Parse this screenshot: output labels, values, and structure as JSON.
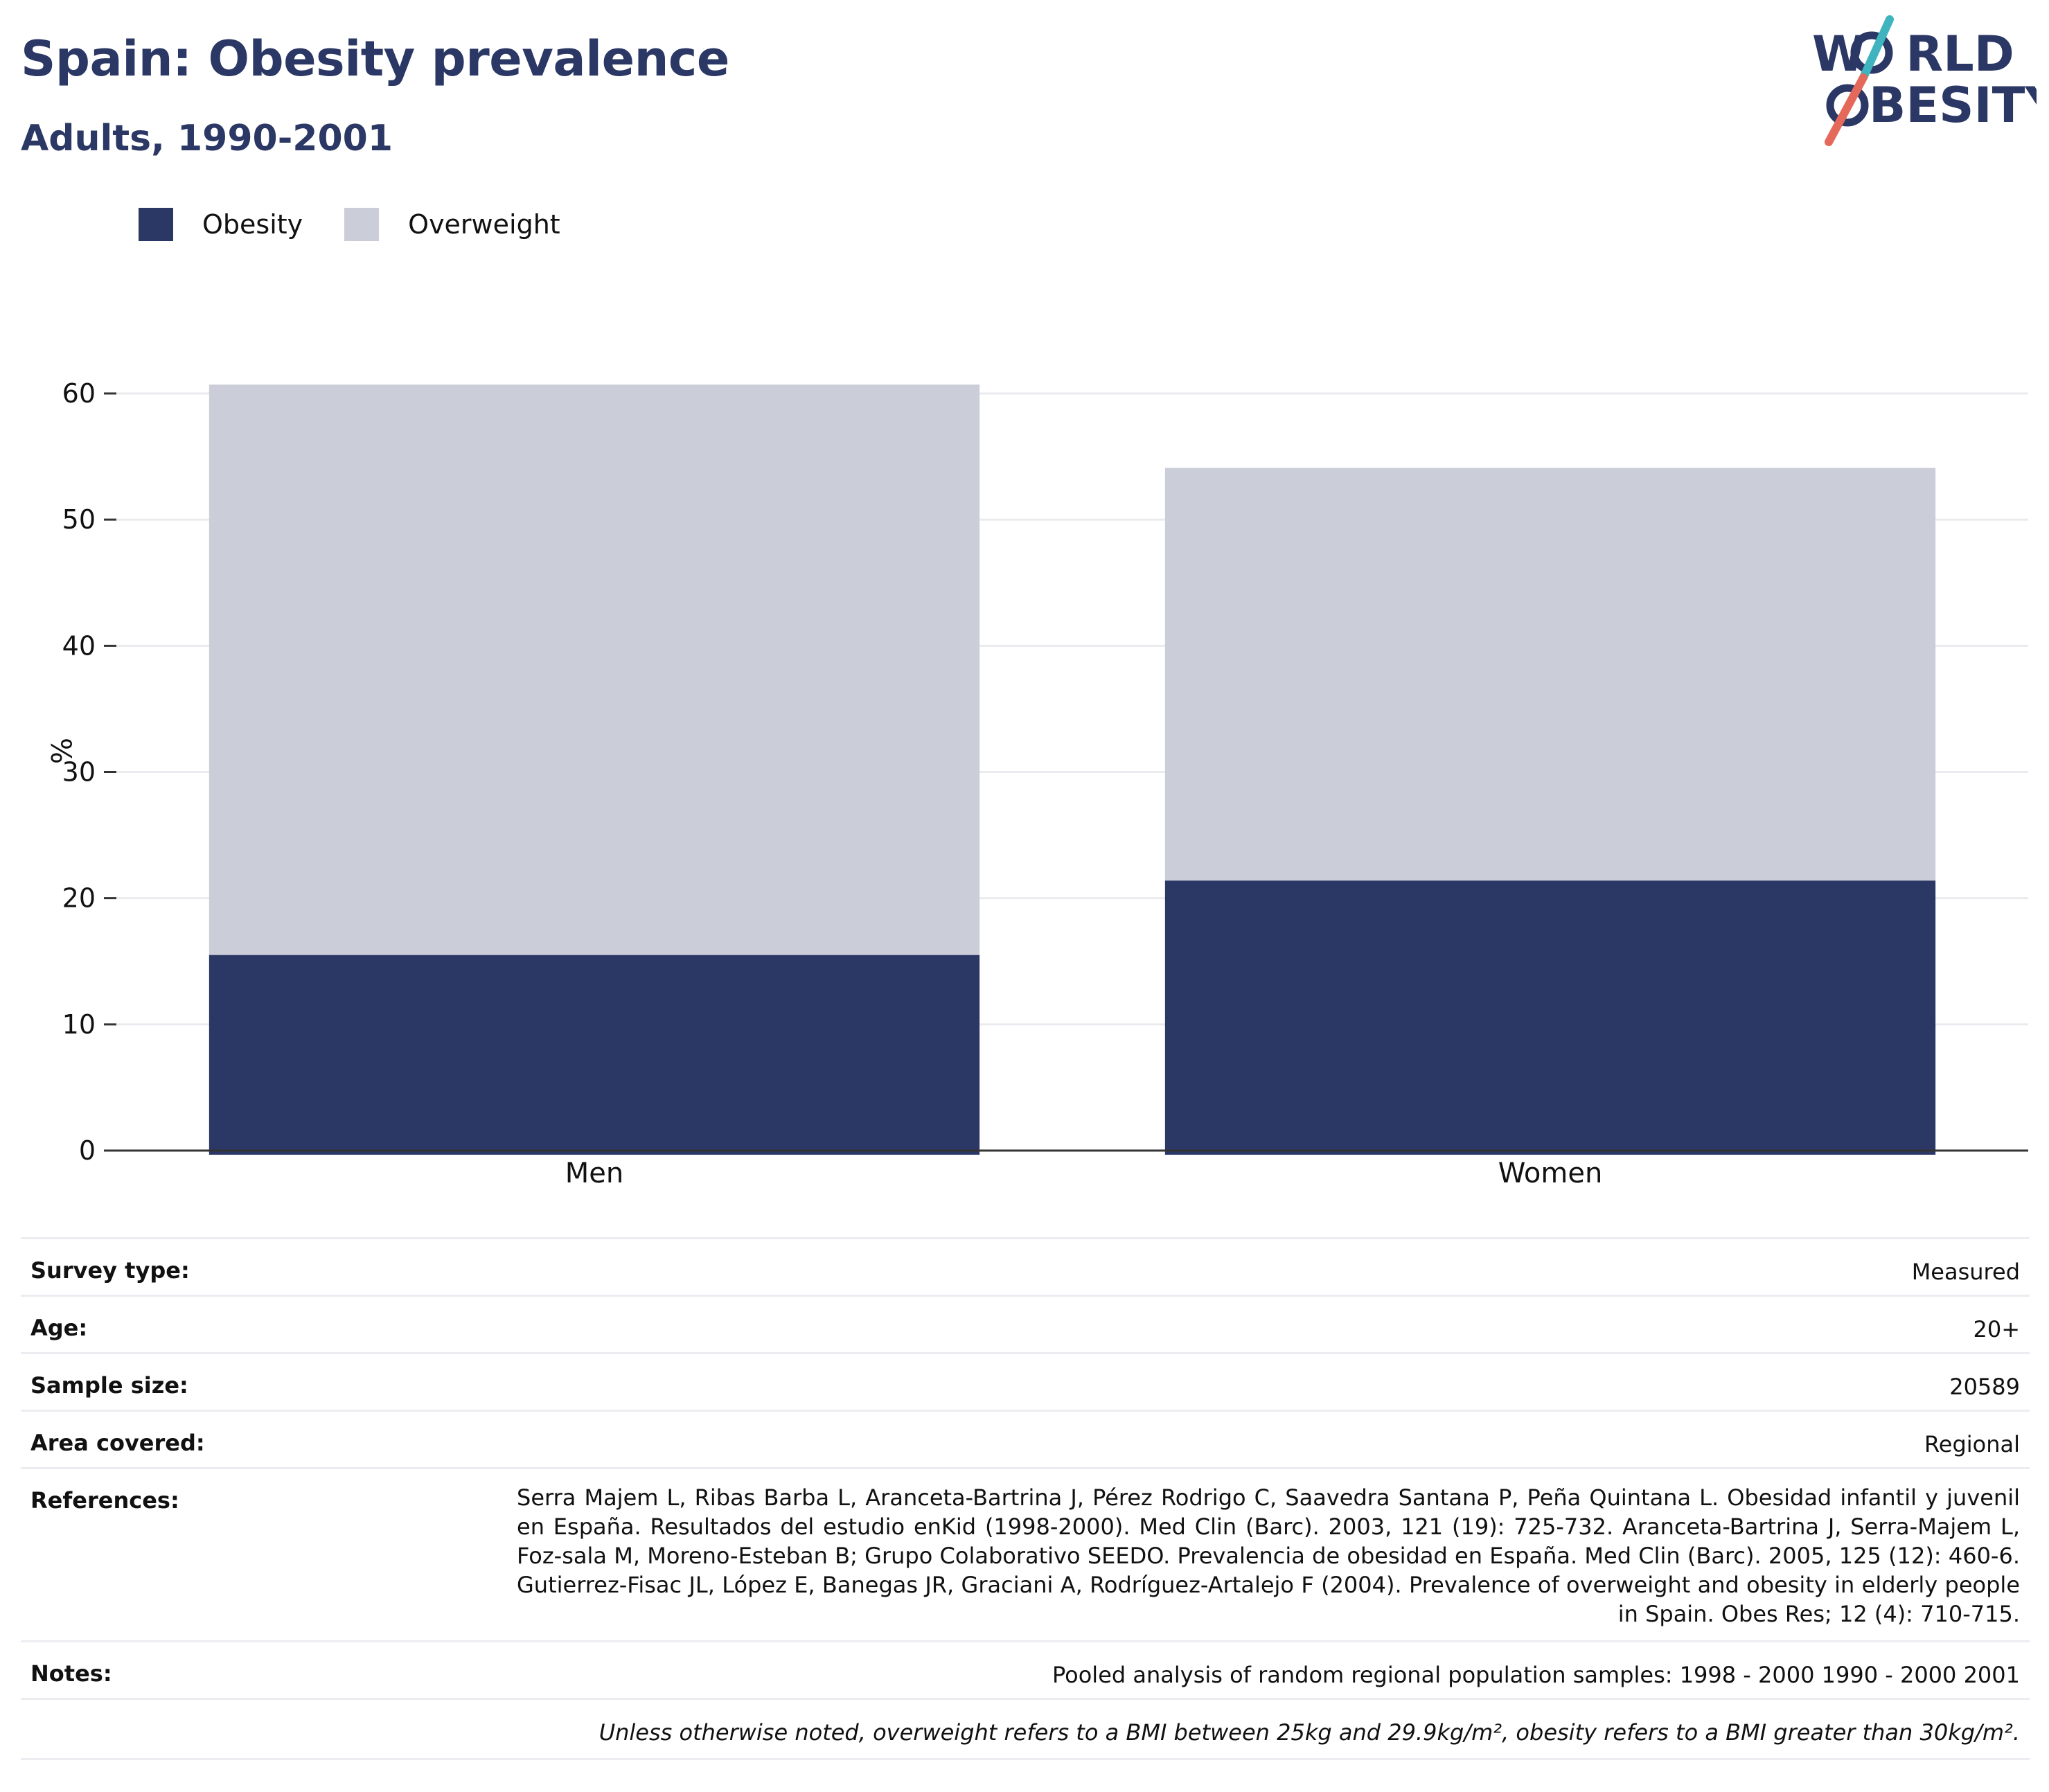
{
  "header": {
    "title": "Spain: Obesity prevalence",
    "subtitle": "Adults, 1990-2001",
    "logo_text": [
      "W",
      "RLD",
      "BESITY"
    ]
  },
  "legend": {
    "items": [
      {
        "label": "Obesity",
        "color": "#2b3764"
      },
      {
        "label": "Overweight",
        "color": "#cbcdd8"
      }
    ]
  },
  "chart_data": {
    "type": "bar",
    "stacked": true,
    "categories": [
      "Men",
      "Women"
    ],
    "series": [
      {
        "name": "Obesity",
        "values": [
          15.5,
          21.4
        ],
        "color": "#2b3764"
      },
      {
        "name": "Overweight",
        "values": [
          45.2,
          32.7
        ],
        "color": "#cbcdd8"
      }
    ],
    "ylabel": "%",
    "yticks": [
      0,
      10,
      20,
      30,
      40,
      50,
      60
    ],
    "ylim": [
      0,
      60
    ],
    "grid": true,
    "legend_position": "top-left"
  },
  "info": {
    "survey_type": {
      "label": "Survey type:",
      "value": "Measured"
    },
    "age": {
      "label": "Age:",
      "value": "20+"
    },
    "sample_size": {
      "label": "Sample size:",
      "value": "20589"
    },
    "area_covered": {
      "label": "Area covered:",
      "value": "Regional"
    },
    "references": {
      "label": "References:",
      "value": "Serra Majem L, Ribas Barba L, Aranceta-Bartrina J, Pérez Rodrigo C, Saavedra Santana P, Peña Quintana L. Obesidad infantil y juvenil en España. Resultados del estudio enKid (1998-2000). Med Clin (Barc). 2003, 121 (19): 725-732. Aranceta-Bartrina J, Serra-Majem L, Foz-sala M, Moreno-Esteban B; Grupo Colaborativo SEEDO. Prevalencia de obesidad en España. Med Clin (Barc). 2005, 125 (12): 460-6. Gutierrez-Fisac JL, López E, Banegas JR, Graciani A, Rodríguez-Artalejo F (2004). Prevalence of overweight and obesity in elderly people in Spain. Obes Res; 12 (4): 710-715."
    },
    "notes": {
      "label": "Notes:",
      "value": "Pooled analysis of random regional population samples: 1998 - 2000 1990 - 2000 2001"
    },
    "footnote": "Unless otherwise noted, overweight refers to a BMI between 25kg and 29.9kg/m², obesity refers to a BMI greater than 30kg/m²."
  }
}
